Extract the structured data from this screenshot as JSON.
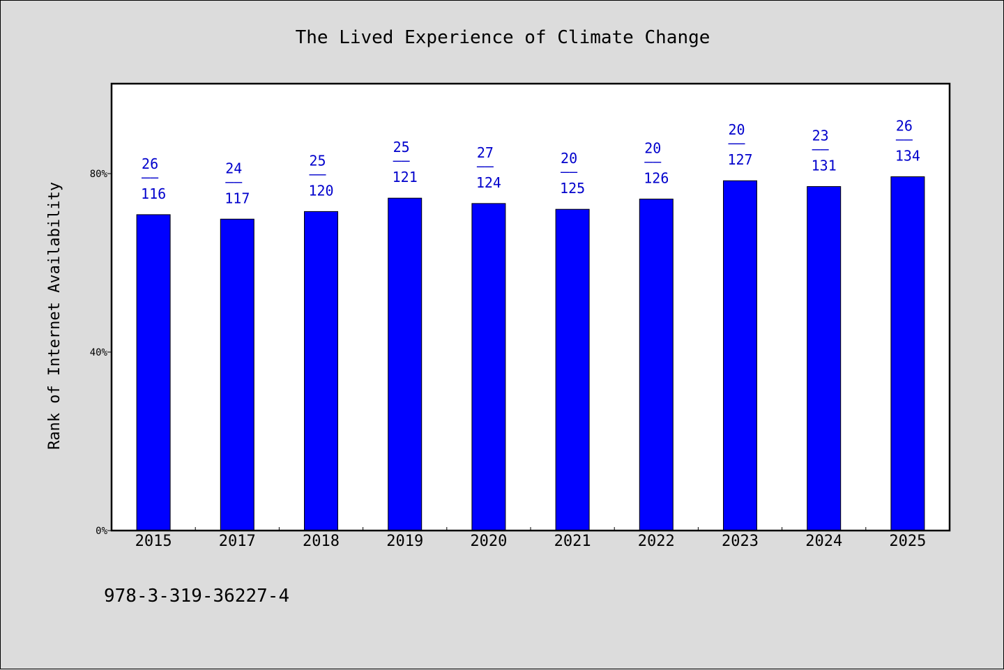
{
  "chart_data": {
    "type": "bar",
    "title": "The Lived Experience of Climate Change",
    "ylabel": "Rank of Internet Availability",
    "xlabel": "",
    "categories": [
      "2015",
      "2017",
      "2018",
      "2019",
      "2020",
      "2021",
      "2022",
      "2023",
      "2024",
      "2025"
    ],
    "values": [
      70.8,
      69.8,
      71.5,
      74.5,
      73.3,
      72.0,
      74.3,
      78.4,
      77.1,
      79.3
    ],
    "ranks": [
      "26",
      "24",
      "25",
      "25",
      "27",
      "20",
      "20",
      "20",
      "23",
      "26"
    ],
    "totals": [
      "116",
      "117",
      "120",
      "121",
      "124",
      "125",
      "126",
      "127",
      "131",
      "134"
    ],
    "label_separator": "——",
    "ylim": [
      0,
      100
    ],
    "yticks": [
      0,
      40,
      80
    ],
    "ytick_labels": [
      "0%",
      "40%",
      "80%"
    ],
    "grid": false,
    "legend": "none",
    "bar_color": "#0000ff",
    "label_color": "#0000cc",
    "plot_background": "#ffffff",
    "page_background": "#dcdcdc"
  },
  "footer": {
    "isbn": "978-3-319-36227-4"
  }
}
